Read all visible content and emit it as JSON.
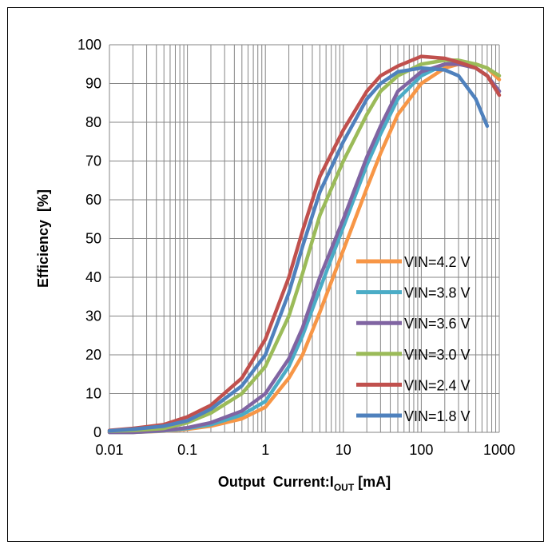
{
  "chart_data": {
    "type": "line",
    "x_scale": "log",
    "xlim": [
      0.01,
      1000
    ],
    "ylim": [
      0,
      100
    ],
    "grid": true,
    "legend_position": "bottom-right",
    "xlabel_parts": [
      "Output  Current:I",
      "OUT",
      " [mA]"
    ],
    "ylabel": "Efficiency  [%]",
    "x_ticks": [
      {
        "value": 0.01,
        "label": "0.01"
      },
      {
        "value": 0.1,
        "label": "0.1"
      },
      {
        "value": 1,
        "label": "1"
      },
      {
        "value": 10,
        "label": "10"
      },
      {
        "value": 100,
        "label": "100"
      },
      {
        "value": 1000,
        "label": "1000"
      }
    ],
    "y_ticks": [
      {
        "value": 0,
        "label": "0"
      },
      {
        "value": 10,
        "label": "10"
      },
      {
        "value": 20,
        "label": "20"
      },
      {
        "value": 30,
        "label": "30"
      },
      {
        "value": 40,
        "label": "40"
      },
      {
        "value": 50,
        "label": "50"
      },
      {
        "value": 60,
        "label": "60"
      },
      {
        "value": 70,
        "label": "70"
      },
      {
        "value": 80,
        "label": "80"
      },
      {
        "value": 90,
        "label": "90"
      },
      {
        "value": 100,
        "label": "100"
      }
    ],
    "series": [
      {
        "name": "VIN=4.2 V",
        "color": "#F79646",
        "x": [
          0.01,
          0.02,
          0.05,
          0.1,
          0.2,
          0.5,
          1,
          2,
          3,
          5,
          10,
          20,
          30,
          50,
          100,
          200,
          300,
          500,
          700,
          1000
        ],
        "y": [
          0,
          0,
          0.3,
          0.8,
          1.6,
          3.5,
          6.5,
          14,
          20,
          31,
          47,
          63,
          72,
          82,
          90,
          94,
          95,
          95,
          94,
          91
        ]
      },
      {
        "name": "VIN=3.8 V",
        "color": "#4BACC6",
        "x": [
          0.01,
          0.02,
          0.05,
          0.1,
          0.2,
          0.5,
          1,
          2,
          3,
          5,
          10,
          20,
          30,
          50,
          100,
          200,
          300,
          500,
          700,
          1000
        ],
        "y": [
          0,
          0,
          0.4,
          1,
          2,
          4.5,
          8,
          17,
          25,
          37,
          53,
          69,
          77,
          86,
          92,
          95,
          95.5,
          94,
          92,
          88
        ]
      },
      {
        "name": "VIN=3.6 V",
        "color": "#8064A2",
        "x": [
          0.01,
          0.02,
          0.05,
          0.1,
          0.2,
          0.5,
          1,
          2,
          3,
          5,
          10,
          20,
          30,
          50,
          100,
          200,
          300,
          500,
          700,
          1000
        ],
        "y": [
          0,
          0,
          0.5,
          1.2,
          2.5,
          5.5,
          10,
          19,
          27,
          40,
          55,
          71,
          79,
          88,
          93,
          95,
          95,
          94,
          92,
          88
        ]
      },
      {
        "name": "VIN=3.0 V",
        "color": "#9BBB59",
        "x": [
          0.01,
          0.02,
          0.05,
          0.1,
          0.2,
          0.5,
          1,
          2,
          3,
          5,
          10,
          20,
          30,
          50,
          100,
          200,
          300,
          500,
          700,
          1000
        ],
        "y": [
          0.3,
          0.5,
          1,
          2.5,
          5,
          10,
          17,
          30,
          41,
          56,
          70,
          82,
          88,
          92,
          95,
          96,
          96,
          95,
          94,
          92
        ]
      },
      {
        "name": "VIN=2.4 V",
        "color": "#C0504D",
        "x": [
          0.01,
          0.02,
          0.05,
          0.1,
          0.2,
          0.5,
          1,
          2,
          3,
          5,
          10,
          20,
          30,
          50,
          100,
          200,
          300,
          500,
          700,
          1000
        ],
        "y": [
          0.5,
          1,
          2,
          4,
          7,
          14,
          24,
          40,
          52,
          66,
          78,
          88,
          92,
          94.5,
          97,
          96.5,
          95.5,
          94,
          92,
          87
        ]
      },
      {
        "name": "VIN=1.8 V",
        "color": "#4F81BD",
        "x": [
          0.01,
          0.02,
          0.05,
          0.1,
          0.2,
          0.5,
          1,
          2,
          3,
          5,
          10,
          20,
          30,
          50,
          100,
          200,
          300,
          500,
          700
        ],
        "y": [
          0.4,
          0.8,
          1.6,
          3,
          6,
          12,
          20,
          36,
          48,
          62,
          75,
          86,
          90,
          93,
          94,
          93.5,
          92,
          86,
          79
        ]
      }
    ]
  }
}
